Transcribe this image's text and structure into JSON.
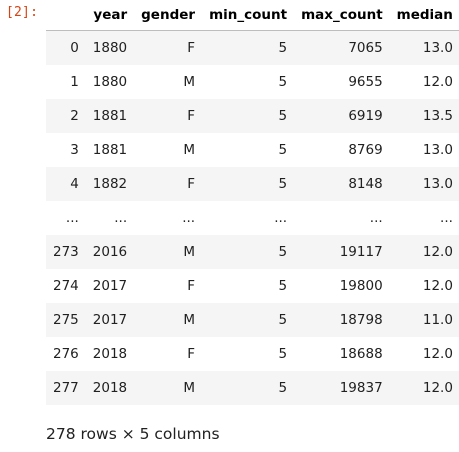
{
  "cell": {
    "prompt": "[2]:"
  },
  "dataframe": {
    "columns": [
      "",
      "year",
      "gender",
      "min_count",
      "max_count",
      "median"
    ],
    "rows": [
      [
        "0",
        "1880",
        "F",
        "5",
        "7065",
        "13.0"
      ],
      [
        "1",
        "1880",
        "M",
        "5",
        "9655",
        "12.0"
      ],
      [
        "2",
        "1881",
        "F",
        "5",
        "6919",
        "13.5"
      ],
      [
        "3",
        "1881",
        "M",
        "5",
        "8769",
        "13.0"
      ],
      [
        "4",
        "1882",
        "F",
        "5",
        "8148",
        "13.0"
      ],
      [
        "...",
        "...",
        "...",
        "...",
        "...",
        "..."
      ],
      [
        "273",
        "2016",
        "M",
        "5",
        "19117",
        "12.0"
      ],
      [
        "274",
        "2017",
        "F",
        "5",
        "19800",
        "12.0"
      ],
      [
        "275",
        "2017",
        "M",
        "5",
        "18798",
        "11.0"
      ],
      [
        "276",
        "2018",
        "F",
        "5",
        "18688",
        "12.0"
      ],
      [
        "277",
        "2018",
        "M",
        "5",
        "19837",
        "12.0"
      ]
    ],
    "shape_text": "278 rows × 5 columns"
  }
}
